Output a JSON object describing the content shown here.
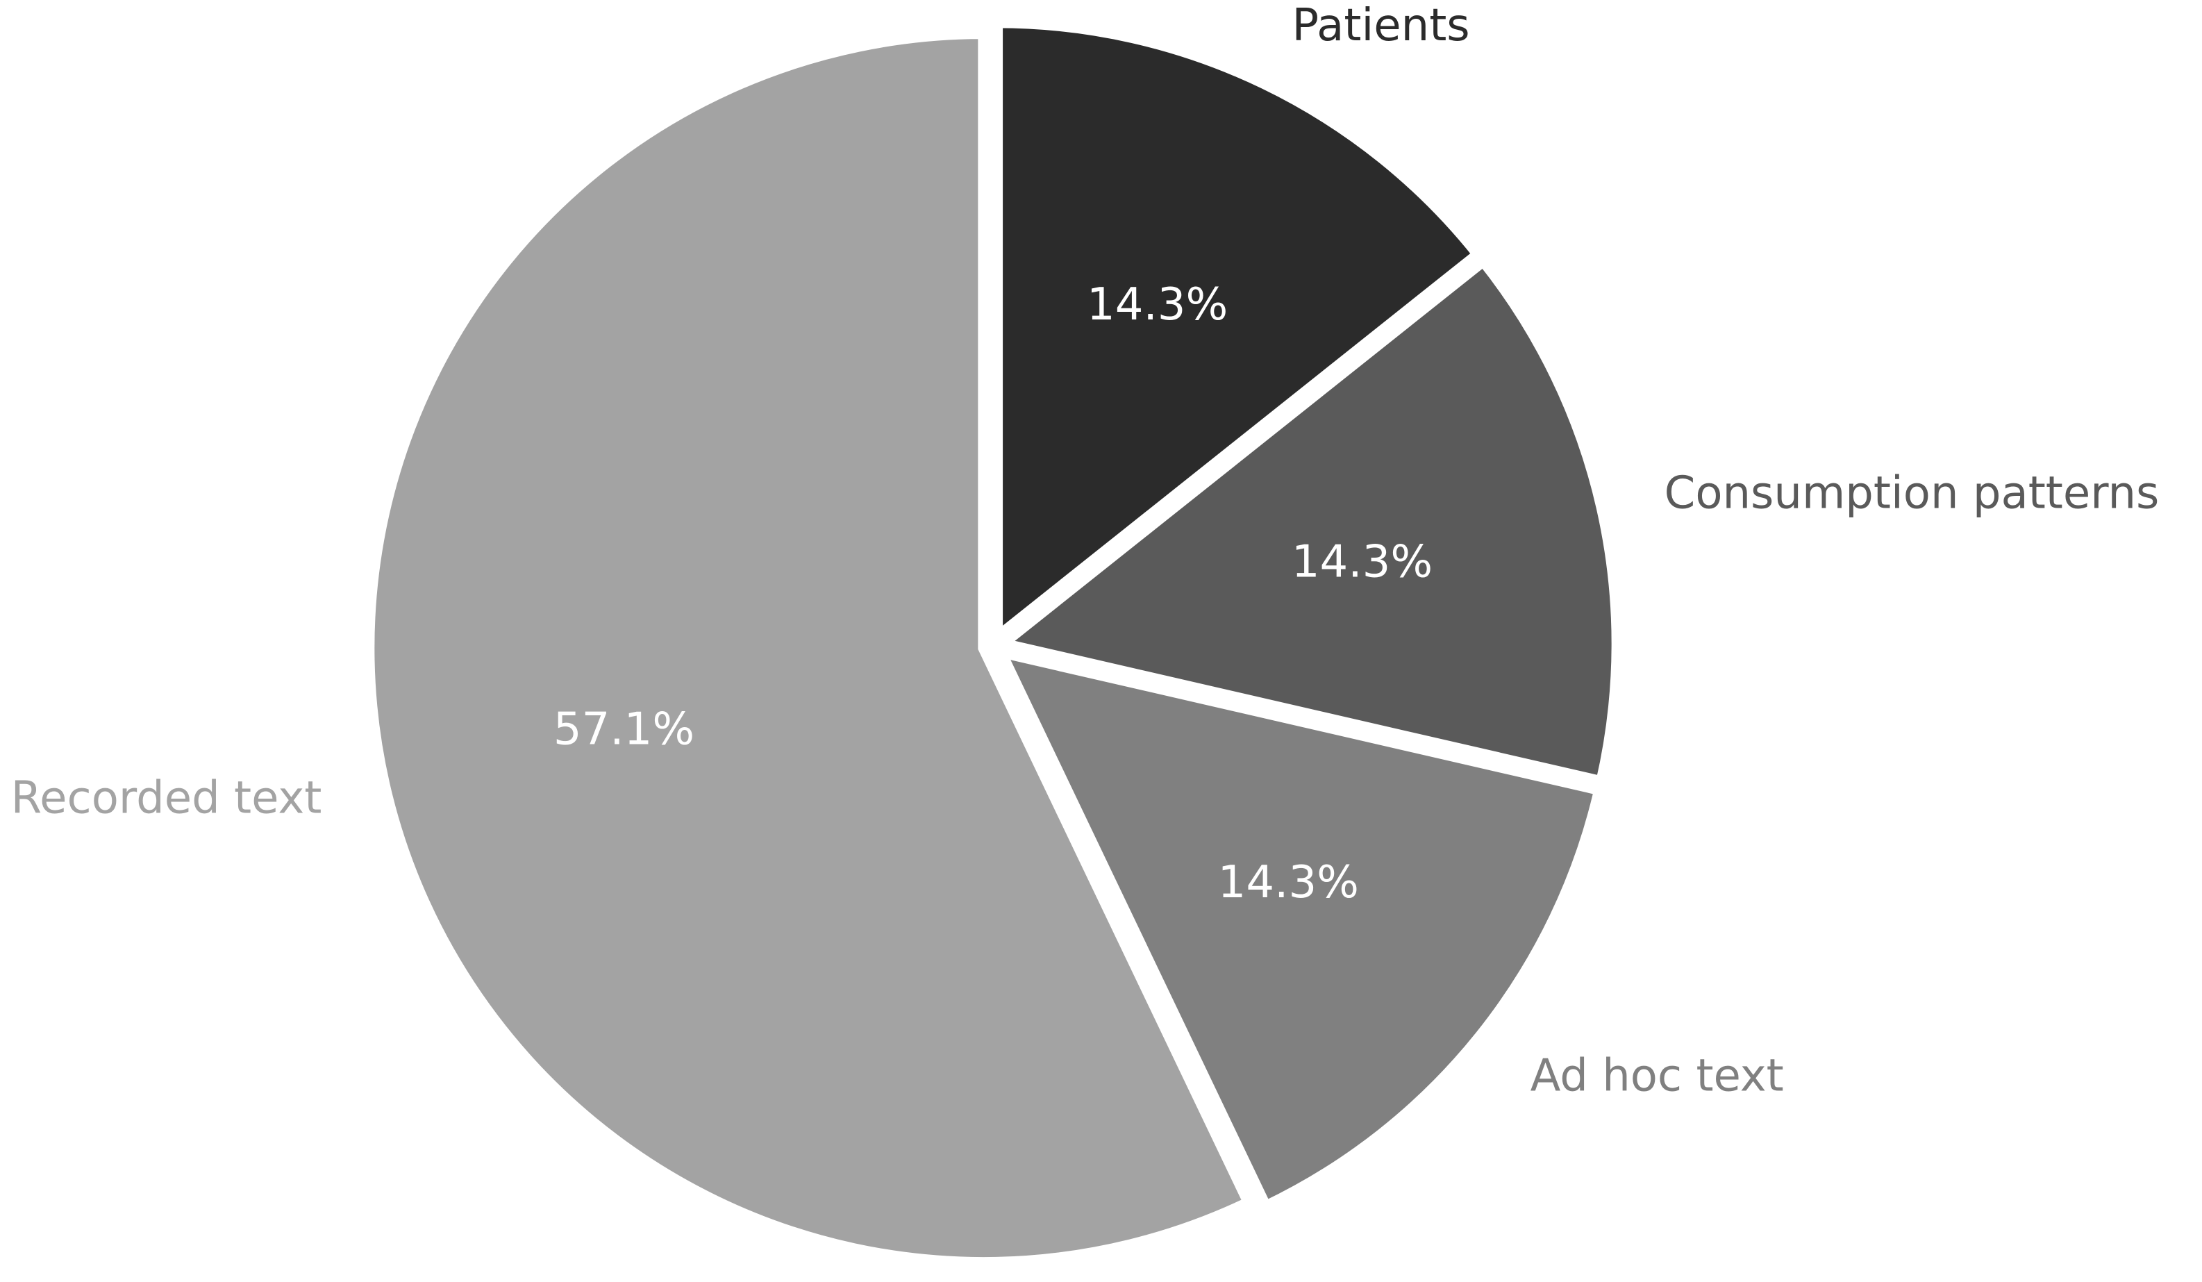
{
  "chart_data": {
    "type": "pie",
    "title": "",
    "categories": [
      "Patients",
      "Consumption patterns",
      "Ad hoc text",
      "Recorded text"
    ],
    "values": [
      14.3,
      14.3,
      14.3,
      57.1
    ],
    "value_labels": [
      "14.3%",
      "14.3%",
      "14.3%",
      "57.1%"
    ],
    "colors": [
      "#2b2b2b",
      "#5a5a5a",
      "#808080",
      "#a3a3a3"
    ],
    "label_colors": [
      "#2b2b2b",
      "#5a5a5a",
      "#808080",
      "#a3a3a3"
    ],
    "start_angle": "12 o'clock",
    "direction": "clockwise",
    "exploded": true,
    "legend": "none"
  }
}
